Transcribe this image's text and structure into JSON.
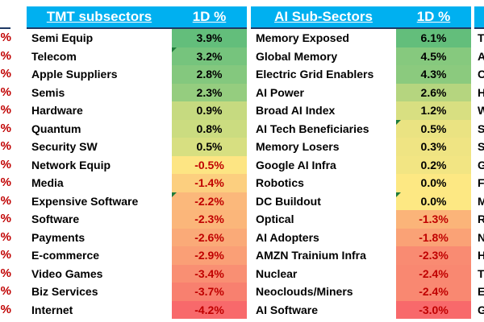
{
  "left_edge": {
    "values": [
      "%",
      "%",
      "%",
      "%",
      "%",
      "%",
      "%",
      "%",
      "%",
      "%",
      "%",
      "%",
      "%",
      "%",
      "%",
      "%"
    ]
  },
  "tmt": {
    "header": {
      "name": "TMT subsectors",
      "value": "1D %"
    },
    "rows": [
      {
        "name": "Semi Equip",
        "value": "3.9%",
        "color": "#63be7b"
      },
      {
        "name": "Telecom",
        "value": "3.2%",
        "color": "#76c47d"
      },
      {
        "name": "Apple Suppliers",
        "value": "2.8%",
        "color": "#84c87e"
      },
      {
        "name": "Semis",
        "value": "2.3%",
        "color": "#95cd7f"
      },
      {
        "name": "Hardware",
        "value": "0.9%",
        "color": "#c6da80"
      },
      {
        "name": "Quantum",
        "value": "0.8%",
        "color": "#cbdc80"
      },
      {
        "name": "Security SW",
        "value": "0.5%",
        "color": "#d7df81"
      },
      {
        "name": "Network Equip",
        "value": "-0.5%",
        "color": "#fde583"
      },
      {
        "name": "Media",
        "value": "-1.4%",
        "color": "#fccf7f"
      },
      {
        "name": "Expensive Software",
        "value": "-2.2%",
        "color": "#fbb87b"
      },
      {
        "name": "Software",
        "value": "-2.3%",
        "color": "#fbb67a"
      },
      {
        "name": "Payments",
        "value": "-2.6%",
        "color": "#faaa78"
      },
      {
        "name": "E-commerce",
        "value": "-2.9%",
        "color": "#fa9f76"
      },
      {
        "name": "Video Games",
        "value": "-3.4%",
        "color": "#f98f73"
      },
      {
        "name": "Biz Services",
        "value": "-3.7%",
        "color": "#f8806f"
      },
      {
        "name": "Internet",
        "value": "-4.2%",
        "color": "#f8696b"
      }
    ]
  },
  "ai": {
    "header": {
      "name": "AI Sub-Sectors",
      "value": "1D %"
    },
    "rows": [
      {
        "name": "Memory Exposed",
        "value": "6.1%",
        "color": "#63be7b"
      },
      {
        "name": "Global Memory",
        "value": "4.5%",
        "color": "#86c97e"
      },
      {
        "name": "Electric Grid Enablers",
        "value": "4.3%",
        "color": "#8bca7e"
      },
      {
        "name": "AI Power",
        "value": "2.6%",
        "color": "#b5d57f"
      },
      {
        "name": "Broad AI Index",
        "value": "1.2%",
        "color": "#d8df81"
      },
      {
        "name": "AI Tech Beneficiaries",
        "value": "0.5%",
        "color": "#eae382"
      },
      {
        "name": "Memory Losers",
        "value": "0.3%",
        "color": "#efe483"
      },
      {
        "name": "Google AI Infra",
        "value": "0.2%",
        "color": "#f2e583"
      },
      {
        "name": "Robotics",
        "value": "0.0%",
        "color": "#fde883"
      },
      {
        "name": "DC Buildout",
        "value": "0.0%",
        "color": "#fde883"
      },
      {
        "name": "Optical",
        "value": "-1.3%",
        "color": "#fbb479"
      },
      {
        "name": "AI Adopters",
        "value": "-1.8%",
        "color": "#faa276"
      },
      {
        "name": "AMZN Trainium Infra",
        "value": "-2.3%",
        "color": "#f98b72"
      },
      {
        "name": "Nuclear",
        "value": "-2.4%",
        "color": "#f98871"
      },
      {
        "name": "Neoclouds/Miners",
        "value": "-2.4%",
        "color": "#f98871"
      },
      {
        "name": "AI Software",
        "value": "-3.0%",
        "color": "#f8696b"
      }
    ]
  },
  "right_edge": {
    "letters": [
      "T",
      "A",
      "C",
      "H",
      "W",
      "S",
      "S",
      "G",
      "F",
      "M",
      "R",
      "N",
      "H",
      "T",
      "E",
      "G"
    ]
  },
  "colors": {
    "header_bg": "#00b0f0",
    "header_text": "#ffffff",
    "negative_text": "#c00000",
    "comment_marker": "#1e7b3a"
  },
  "comment_markers": {
    "tmt": [
      1,
      9
    ],
    "ai": [
      5,
      9
    ]
  }
}
